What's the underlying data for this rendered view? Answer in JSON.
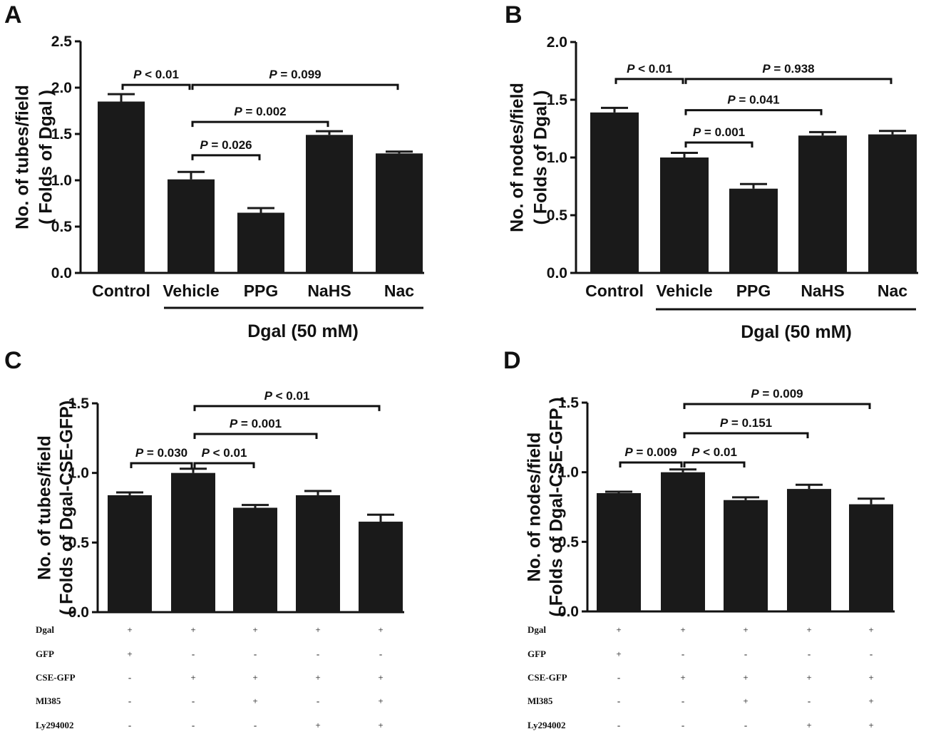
{
  "chart_data": [
    {
      "panel": "A",
      "type": "bar",
      "ylabel": [
        "No. of tubes/field",
        "( Folds of Dgal )"
      ],
      "ylim": [
        0,
        2.5
      ],
      "yticks": [
        "0.0",
        "0.5",
        "1.0",
        "1.5",
        "2.0",
        "2.5"
      ],
      "yticks_values": [
        0,
        0.5,
        1.0,
        1.5,
        2.0,
        2.5
      ],
      "categories": [
        "Control",
        "Vehicle",
        "PPG",
        "NaHS",
        "Nac"
      ],
      "values": [
        1.85,
        1.01,
        0.65,
        1.49,
        1.29
      ],
      "errors": [
        0.08,
        0.08,
        0.05,
        0.04,
        0.02
      ],
      "comparisons": [
        {
          "from": 0,
          "to": 1,
          "label": "P < 0.01",
          "y": 2.03
        },
        {
          "from": 1,
          "to": 4,
          "label": "P = 0.099",
          "y": 2.03
        },
        {
          "from": 1,
          "to": 3,
          "label": "P = 0.002",
          "y": 1.63
        },
        {
          "from": 1,
          "to": 2,
          "label": "P = 0.026",
          "y": 1.27
        }
      ],
      "group": {
        "label": "Dgal (50 mM)",
        "from": 1,
        "to": 4
      }
    },
    {
      "panel": "B",
      "type": "bar",
      "ylabel": [
        "No. of nodes/field",
        "( Folds of Dgal )"
      ],
      "ylim": [
        0,
        2.0
      ],
      "yticks": [
        "0.0",
        "0.5",
        "1.0",
        "1.5",
        "2.0"
      ],
      "yticks_values": [
        0,
        0.5,
        1.0,
        1.5,
        2.0
      ],
      "categories": [
        "Control",
        "Vehicle",
        "PPG",
        "NaHS",
        "Nac"
      ],
      "values": [
        1.39,
        1.0,
        0.73,
        1.19,
        1.2
      ],
      "errors": [
        0.04,
        0.04,
        0.04,
        0.03,
        0.03
      ],
      "comparisons": [
        {
          "from": 0,
          "to": 1,
          "label": "P < 0.01",
          "y": 1.68
        },
        {
          "from": 1,
          "to": 4,
          "label": "P = 0.938",
          "y": 1.68
        },
        {
          "from": 1,
          "to": 3,
          "label": "P = 0.041",
          "y": 1.41
        },
        {
          "from": 1,
          "to": 2,
          "label": "P = 0.001",
          "y": 1.13
        }
      ],
      "group": {
        "label": "Dgal (50 mM)",
        "from": 1,
        "to": 4
      }
    },
    {
      "panel": "C",
      "type": "bar",
      "ylabel": [
        "No. of tubes/field",
        "( Folds of Dgal-CSE-GFP)"
      ],
      "ylim": [
        0,
        1.5
      ],
      "yticks": [
        "0.0",
        "0.5",
        "1.0",
        "1.5"
      ],
      "yticks_values": [
        0,
        0.5,
        1.0,
        1.5
      ],
      "categories": [
        "",
        "",
        "",
        "",
        ""
      ],
      "values": [
        0.84,
        1.0,
        0.75,
        0.84,
        0.65
      ],
      "errors": [
        0.02,
        0.03,
        0.02,
        0.03,
        0.05
      ],
      "comparisons": [
        {
          "from": 0,
          "to": 1,
          "label": "P = 0.030",
          "y": 1.07
        },
        {
          "from": 1,
          "to": 2,
          "label": "P < 0.01",
          "y": 1.07
        },
        {
          "from": 1,
          "to": 3,
          "label": "P = 0.001",
          "y": 1.28
        },
        {
          "from": 1,
          "to": 4,
          "label": "P < 0.01",
          "y": 1.48
        }
      ],
      "condition_rows": [
        {
          "label": "Dgal",
          "signs": [
            "+",
            "+",
            "+",
            "+",
            "+"
          ]
        },
        {
          "label": "GFP",
          "signs": [
            "+",
            "-",
            "-",
            "-",
            "-"
          ]
        },
        {
          "label": "CSE-GFP",
          "signs": [
            "-",
            "+",
            "+",
            "+",
            "+"
          ]
        },
        {
          "label": "Ml385",
          "signs": [
            "-",
            "-",
            "+",
            "-",
            "+"
          ]
        },
        {
          "label": "Ly294002",
          "signs": [
            "-",
            "-",
            "-",
            "+",
            "+"
          ]
        }
      ]
    },
    {
      "panel": "D",
      "type": "bar",
      "ylabel": [
        "No. of nodes/field",
        "( Folds of Dgal-CSE-GFP )"
      ],
      "ylim": [
        0,
        1.5
      ],
      "yticks": [
        "0.0",
        "0.5",
        "1.0",
        "1.5"
      ],
      "yticks_values": [
        0,
        0.5,
        1.0,
        1.5
      ],
      "categories": [
        "",
        "",
        "",
        "",
        ""
      ],
      "values": [
        0.85,
        1.0,
        0.8,
        0.88,
        0.77
      ],
      "errors": [
        0.01,
        0.02,
        0.02,
        0.03,
        0.04
      ],
      "comparisons": [
        {
          "from": 0,
          "to": 1,
          "label": "P = 0.009",
          "y": 1.07
        },
        {
          "from": 1,
          "to": 2,
          "label": "P < 0.01",
          "y": 1.07
        },
        {
          "from": 1,
          "to": 3,
          "label": "P = 0.151",
          "y": 1.28
        },
        {
          "from": 1,
          "to": 4,
          "label": "P = 0.009",
          "y": 1.49
        }
      ],
      "condition_rows": [
        {
          "label": "Dgal",
          "signs": [
            "+",
            "+",
            "+",
            "+",
            "+"
          ]
        },
        {
          "label": "GFP",
          "signs": [
            "+",
            "-",
            "-",
            "-",
            "-"
          ]
        },
        {
          "label": "CSE-GFP",
          "signs": [
            "-",
            "+",
            "+",
            "+",
            "+"
          ]
        },
        {
          "label": "Ml385",
          "signs": [
            "-",
            "-",
            "+",
            "-",
            "+"
          ]
        },
        {
          "label": "Ly294002",
          "signs": [
            "-",
            "-",
            "-",
            "+",
            "+"
          ]
        }
      ]
    }
  ]
}
